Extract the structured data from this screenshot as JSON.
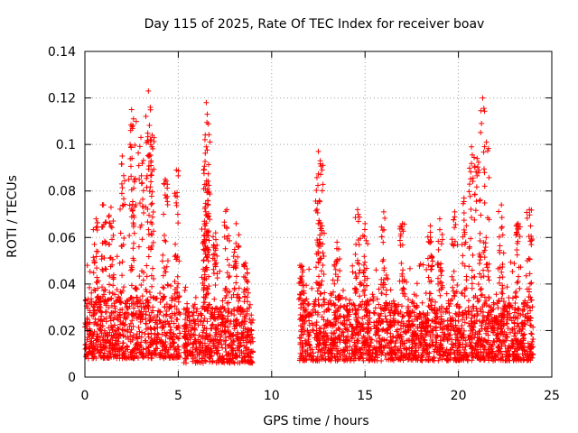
{
  "chart_data": {
    "type": "scatter",
    "title": "Day 115 of 2025, Rate Of TEC Index for receiver boav",
    "xlabel": "GPS time / hours",
    "ylabel": "ROTI / TECUs",
    "xlim": [
      0,
      25
    ],
    "ylim": [
      0,
      0.14
    ],
    "xticks": [
      0,
      5,
      10,
      15,
      20,
      25
    ],
    "xtick_labels": [
      "0",
      "5",
      "10",
      "15",
      "20",
      "25"
    ],
    "yticks": [
      0,
      0.02,
      0.04,
      0.06,
      0.08,
      0.1,
      0.12,
      0.14
    ],
    "ytick_labels": [
      "0",
      "0.02",
      "0.04",
      "0.06",
      "0.08",
      "0.1",
      "0.12",
      "0.14"
    ],
    "grid": true,
    "marker": "+",
    "color": "#ff0000",
    "data_segments": [
      {
        "x_range": [
          0.0,
          5.1
        ],
        "baseline": [
          0.008,
          0.035
        ],
        "peak_values": [
          {
            "x": 0.6,
            "y": 0.068
          },
          {
            "x": 1.0,
            "y": 0.074
          },
          {
            "x": 1.4,
            "y": 0.073
          },
          {
            "x": 2.0,
            "y": 0.095
          },
          {
            "x": 2.5,
            "y": 0.115
          },
          {
            "x": 2.6,
            "y": 0.111
          },
          {
            "x": 3.0,
            "y": 0.103
          },
          {
            "x": 3.4,
            "y": 0.123
          },
          {
            "x": 3.5,
            "y": 0.116
          },
          {
            "x": 3.6,
            "y": 0.104
          },
          {
            "x": 4.3,
            "y": 0.085
          },
          {
            "x": 4.9,
            "y": 0.089
          }
        ]
      },
      {
        "x_range": [
          5.3,
          9.0
        ],
        "baseline": [
          0.006,
          0.03
        ],
        "peak_values": [
          {
            "x": 6.4,
            "y": 0.067
          },
          {
            "x": 6.5,
            "y": 0.118
          },
          {
            "x": 6.55,
            "y": 0.113
          },
          {
            "x": 6.5,
            "y": 0.099
          },
          {
            "x": 6.5,
            "y": 0.083
          },
          {
            "x": 7.0,
            "y": 0.062
          },
          {
            "x": 7.6,
            "y": 0.072
          },
          {
            "x": 8.1,
            "y": 0.066
          },
          {
            "x": 8.6,
            "y": 0.049
          }
        ]
      },
      {
        "x_range": [
          11.5,
          24.0
        ],
        "baseline": [
          0.007,
          0.032
        ],
        "peak_values": [
          {
            "x": 11.6,
            "y": 0.048
          },
          {
            "x": 12.5,
            "y": 0.097
          },
          {
            "x": 12.6,
            "y": 0.093
          },
          {
            "x": 12.7,
            "y": 0.065
          },
          {
            "x": 13.5,
            "y": 0.058
          },
          {
            "x": 14.6,
            "y": 0.072
          },
          {
            "x": 15.0,
            "y": 0.066
          },
          {
            "x": 16.0,
            "y": 0.071
          },
          {
            "x": 17.0,
            "y": 0.066
          },
          {
            "x": 18.5,
            "y": 0.065
          },
          {
            "x": 19.0,
            "y": 0.068
          },
          {
            "x": 19.8,
            "y": 0.071
          },
          {
            "x": 20.3,
            "y": 0.077
          },
          {
            "x": 20.7,
            "y": 0.099
          },
          {
            "x": 21.0,
            "y": 0.094
          },
          {
            "x": 21.3,
            "y": 0.12
          },
          {
            "x": 21.5,
            "y": 0.101
          },
          {
            "x": 22.3,
            "y": 0.074
          },
          {
            "x": 23.2,
            "y": 0.066
          },
          {
            "x": 23.8,
            "y": 0.072
          }
        ]
      }
    ]
  }
}
